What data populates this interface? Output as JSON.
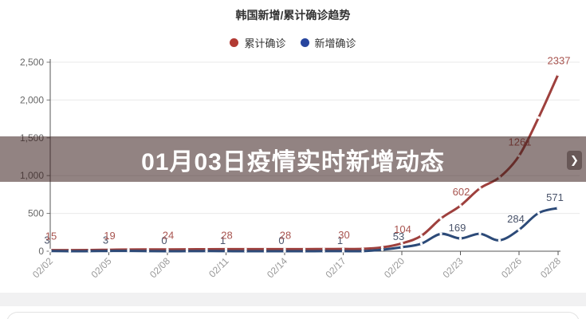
{
  "banner": {
    "title": "01月03日疫情实时新增动态",
    "next_arrow": "❯"
  },
  "chart_data": {
    "type": "line",
    "title": "韩国新增/累计确诊趋势",
    "grid": true,
    "legend_position": "top",
    "x": [
      "02/02",
      "02/03",
      "02/04",
      "02/05",
      "02/06",
      "02/07",
      "02/08",
      "02/09",
      "02/10",
      "02/11",
      "02/12",
      "02/13",
      "02/14",
      "02/15",
      "02/16",
      "02/17",
      "02/18",
      "02/19",
      "02/20",
      "02/21",
      "02/22",
      "02/23",
      "02/24",
      "02/25",
      "02/26",
      "02/27",
      "02/28"
    ],
    "x_tick_labels": [
      "02/02",
      "02/05",
      "02/08",
      "02/11",
      "02/14",
      "02/17",
      "02/20",
      "02/23",
      "02/26",
      "02/28"
    ],
    "ylim": [
      0,
      2500
    ],
    "y_tick_values": [
      0,
      500,
      1000,
      1500,
      2000,
      2500
    ],
    "y_tick_labels": [
      "0",
      "500",
      "1,000",
      "1,500",
      "2,000",
      "2,500"
    ],
    "series": [
      {
        "name": "累计确诊",
        "color": "#9e403d",
        "dot_color": "#b23a33",
        "label_color": "#a8544f",
        "values": [
          15,
          15,
          16,
          19,
          23,
          24,
          24,
          25,
          27,
          28,
          28,
          28,
          28,
          28,
          29,
          30,
          31,
          51,
          104,
          204,
          433,
          602,
          833,
          977,
          1261,
          1766,
          2337
        ],
        "point_labels": [
          "15",
          null,
          null,
          "19",
          null,
          null,
          "24",
          null,
          null,
          "28",
          null,
          null,
          "28",
          null,
          null,
          "30",
          null,
          null,
          "104",
          null,
          null,
          "602",
          null,
          null,
          "1261",
          null,
          "2337"
        ]
      },
      {
        "name": "新增确诊",
        "color": "#2c4a78",
        "dot_color": "#27459e",
        "label_color": "#49536a",
        "values": [
          3,
          0,
          1,
          3,
          4,
          1,
          0,
          1,
          2,
          1,
          0,
          0,
          0,
          0,
          1,
          1,
          1,
          20,
          53,
          100,
          229,
          169,
          231,
          144,
          284,
          505,
          571
        ],
        "point_labels": [
          "3",
          null,
          null,
          "3",
          null,
          null,
          "0",
          null,
          null,
          "1",
          null,
          null,
          "0",
          null,
          null,
          "1",
          null,
          null,
          "53",
          null,
          null,
          "169",
          null,
          null,
          "284",
          null,
          "571"
        ]
      }
    ]
  }
}
